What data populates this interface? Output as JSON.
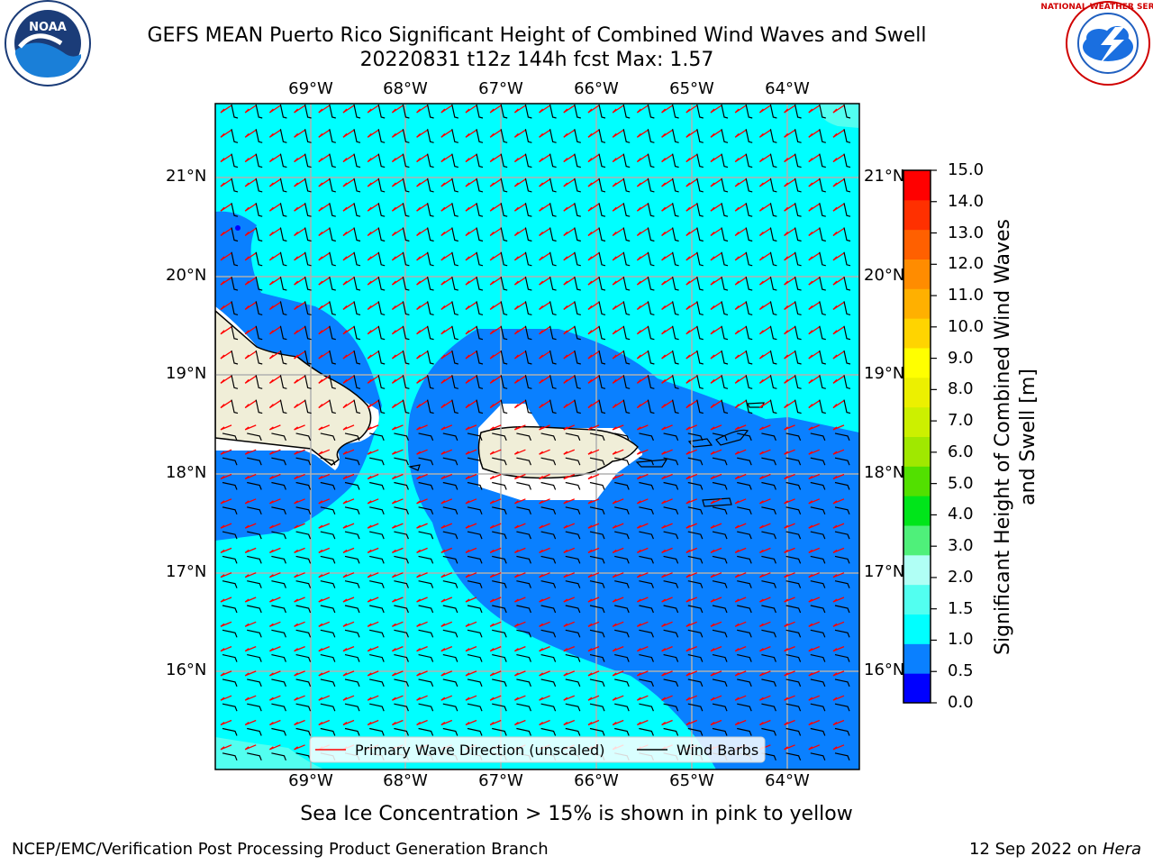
{
  "title": {
    "line1": "GEFS MEAN Puerto Rico Significant Height of Combined Wind Waves and Swell",
    "line2": "20220831 t12z 144h fcst   Max: 1.57"
  },
  "axes": {
    "lon_labels": [
      "69°W",
      "68°W",
      "67°W",
      "66°W",
      "65°W",
      "64°W"
    ],
    "lat_labels": [
      "21°N",
      "20°N",
      "19°N",
      "18°N",
      "17°N",
      "16°N"
    ]
  },
  "legend": {
    "wave_label": "Primary Wave Direction (unscaled)",
    "barb_label": "Wind Barbs",
    "wave_color": "#ff0000",
    "barb_color": "#000000"
  },
  "colorbar": {
    "label": "Significant Height of Combined Wind Waves and Swell [m]",
    "ticks": [
      "15.0",
      "14.0",
      "13.0",
      "12.0",
      "11.0",
      "10.0",
      "9.0",
      "8.0",
      "7.0",
      "6.0",
      "5.0",
      "4.0",
      "3.0",
      "2.0",
      "1.5",
      "1.0",
      "0.5",
      "0.0"
    ],
    "colors": [
      "#0000ff",
      "#0a80ff",
      "#00ffff",
      "#52fff0",
      "#b0fff5",
      "#4ff07a",
      "#00e51a",
      "#52e000",
      "#a0e800",
      "#ccf000",
      "#ecf000",
      "#ffff00",
      "#ffd400",
      "#ffb000",
      "#ff8c00",
      "#ff6000",
      "#ff3000",
      "#ff0000"
    ]
  },
  "logos": {
    "noaa_text": "NOAA",
    "nws_text": "NATIONAL WEATHER SERVICE"
  },
  "subnote": "Sea Ice Concentration > 15% is shown in pink to yellow",
  "footer": {
    "left": "NCEP/EMC/Verification Post Processing Product Generation Branch",
    "right_prefix": "12 Sep 2022 on ",
    "right_host": "Hera"
  }
}
